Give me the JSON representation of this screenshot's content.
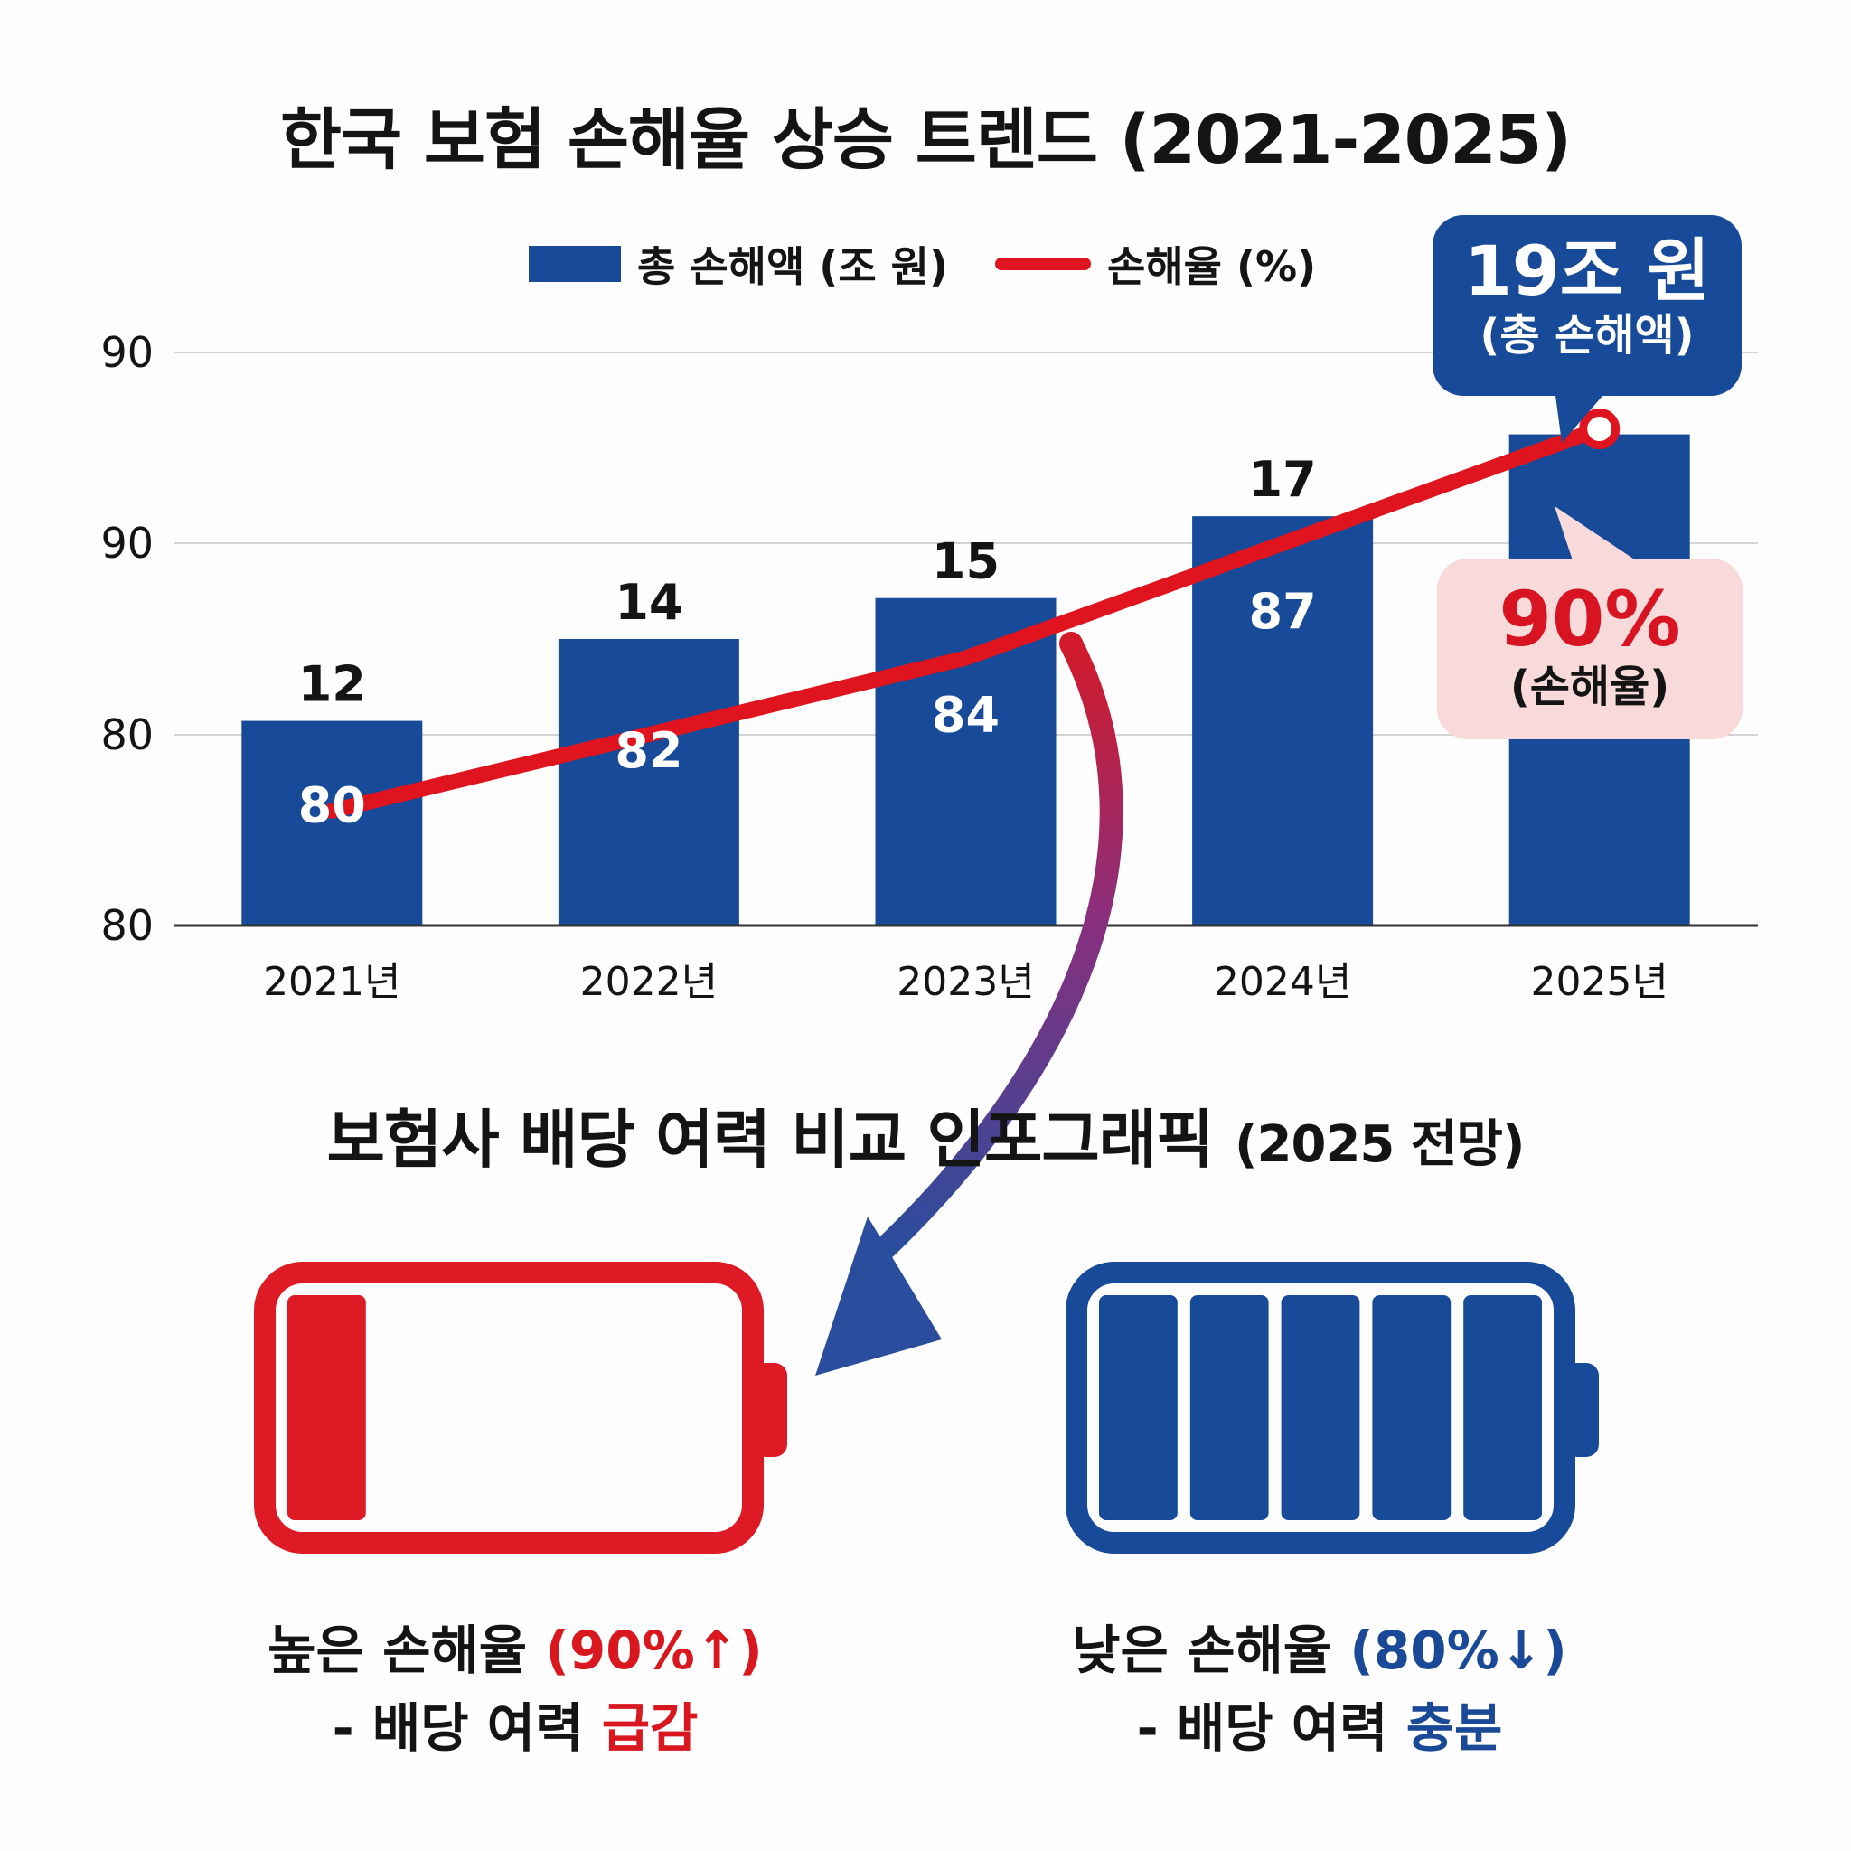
{
  "chart_data": {
    "type": "bar+line",
    "title": "한국 보험 손해율 상승 트렌드 (2021-2025)",
    "categories": [
      "2021년",
      "2022년",
      "2023년",
      "2024년",
      "2025년"
    ],
    "series": [
      {
        "name": "총 손해액 (조 원)",
        "kind": "bar",
        "values": [
          12,
          14,
          15,
          17,
          19
        ],
        "value_labels": [
          "12",
          "14",
          "15",
          "17",
          ""
        ]
      },
      {
        "name": "손해율 (%)",
        "kind": "line",
        "values": [
          80,
          82,
          84,
          87,
          90
        ],
        "value_labels": [
          "80",
          "82",
          "84",
          "87",
          ""
        ]
      }
    ],
    "yaxis_ticks": [
      "80",
      "80",
      "90",
      "90"
    ],
    "scale": {
      "min": 77,
      "max": 92
    },
    "bar_scale": {
      "min": 7,
      "max": 21
    },
    "legend": "top-center",
    "grid": true,
    "annotations": {
      "total_loss_value": "19조 원",
      "total_loss_label": "(총 손해액)",
      "loss_rate_value": "90%",
      "loss_rate_label": "(손해율)"
    }
  },
  "colors": {
    "bar": "#174a98",
    "line": "#e0141e",
    "high_battery": "#de1a24",
    "low_battery": "#174a98"
  },
  "section2": {
    "title": "보험사 배당 여력 비교 인포그래픽",
    "title_suffix": "(2025 전망)",
    "left": {
      "battery_cells_filled": 1,
      "battery_cells_total": 5,
      "line1_text": "높은 손해율",
      "line1_highlight": "(90%↑)",
      "line2_text": "- 배당 여력",
      "line2_highlight": "급감"
    },
    "right": {
      "battery_cells_filled": 5,
      "battery_cells_total": 5,
      "line1_text": "낮은 손해율",
      "line1_highlight": "(80%↓)",
      "line2_text": "- 배당 여력",
      "line2_highlight": "충분"
    }
  }
}
